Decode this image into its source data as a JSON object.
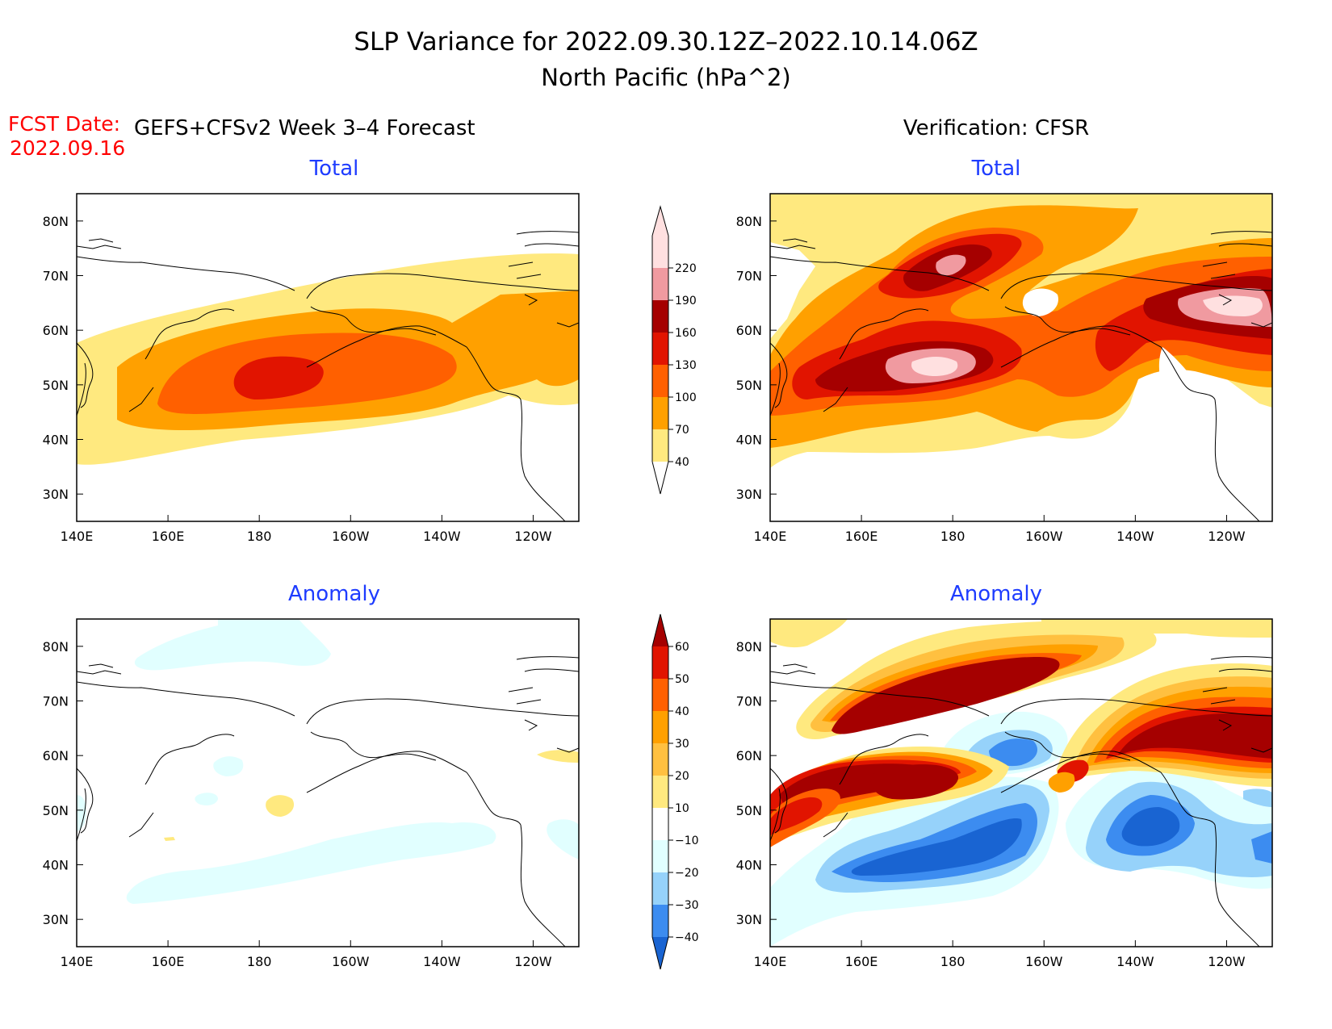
{
  "title": {
    "line1": "SLP Variance for 2022.09.30.12Z–2022.10.14.06Z",
    "line2": "North Pacific (hPa^2)"
  },
  "fcst_date": {
    "label": "FCST Date:",
    "value": "2022.09.16"
  },
  "columns": {
    "left": "GEFS+CFSv2 Week 3–4 Forecast",
    "right": "Verification: CFSR"
  },
  "panels": {
    "fcst_total": {
      "subtitle": "Total"
    },
    "obs_total": {
      "subtitle": "Total"
    },
    "fcst_anom": {
      "subtitle": "Anomaly"
    },
    "obs_anom": {
      "subtitle": "Anomaly"
    }
  },
  "axes": {
    "x_ticks": [
      "140E",
      "160E",
      "180",
      "160W",
      "140W",
      "120W"
    ],
    "y_ticks": [
      "80N",
      "70N",
      "60N",
      "50N",
      "40N",
      "30N"
    ]
  },
  "colorbars": {
    "total": {
      "levels": [
        "40",
        "70",
        "100",
        "130",
        "160",
        "190",
        "220"
      ],
      "colors": [
        "#ffe97f",
        "#ffa000",
        "#ff6000",
        "#e11400",
        "#a50000",
        "#f09aa0",
        "#ffe0e0"
      ]
    },
    "anomaly": {
      "levels": [
        "60",
        "50",
        "40",
        "30",
        "20",
        "10",
        "−10",
        "−20",
        "−30",
        "−40"
      ],
      "colors": [
        "#a50000",
        "#e11400",
        "#ff6000",
        "#ffa000",
        "#ffc040",
        "#ffe97f",
        "#ffffff",
        "#e1ffff",
        "#96d2fa",
        "#3c8cf0",
        "#1964d2"
      ]
    }
  },
  "colors": {
    "title": "#000000",
    "subtitle": "#1e3cff",
    "fcst_date": "#ff0000"
  }
}
